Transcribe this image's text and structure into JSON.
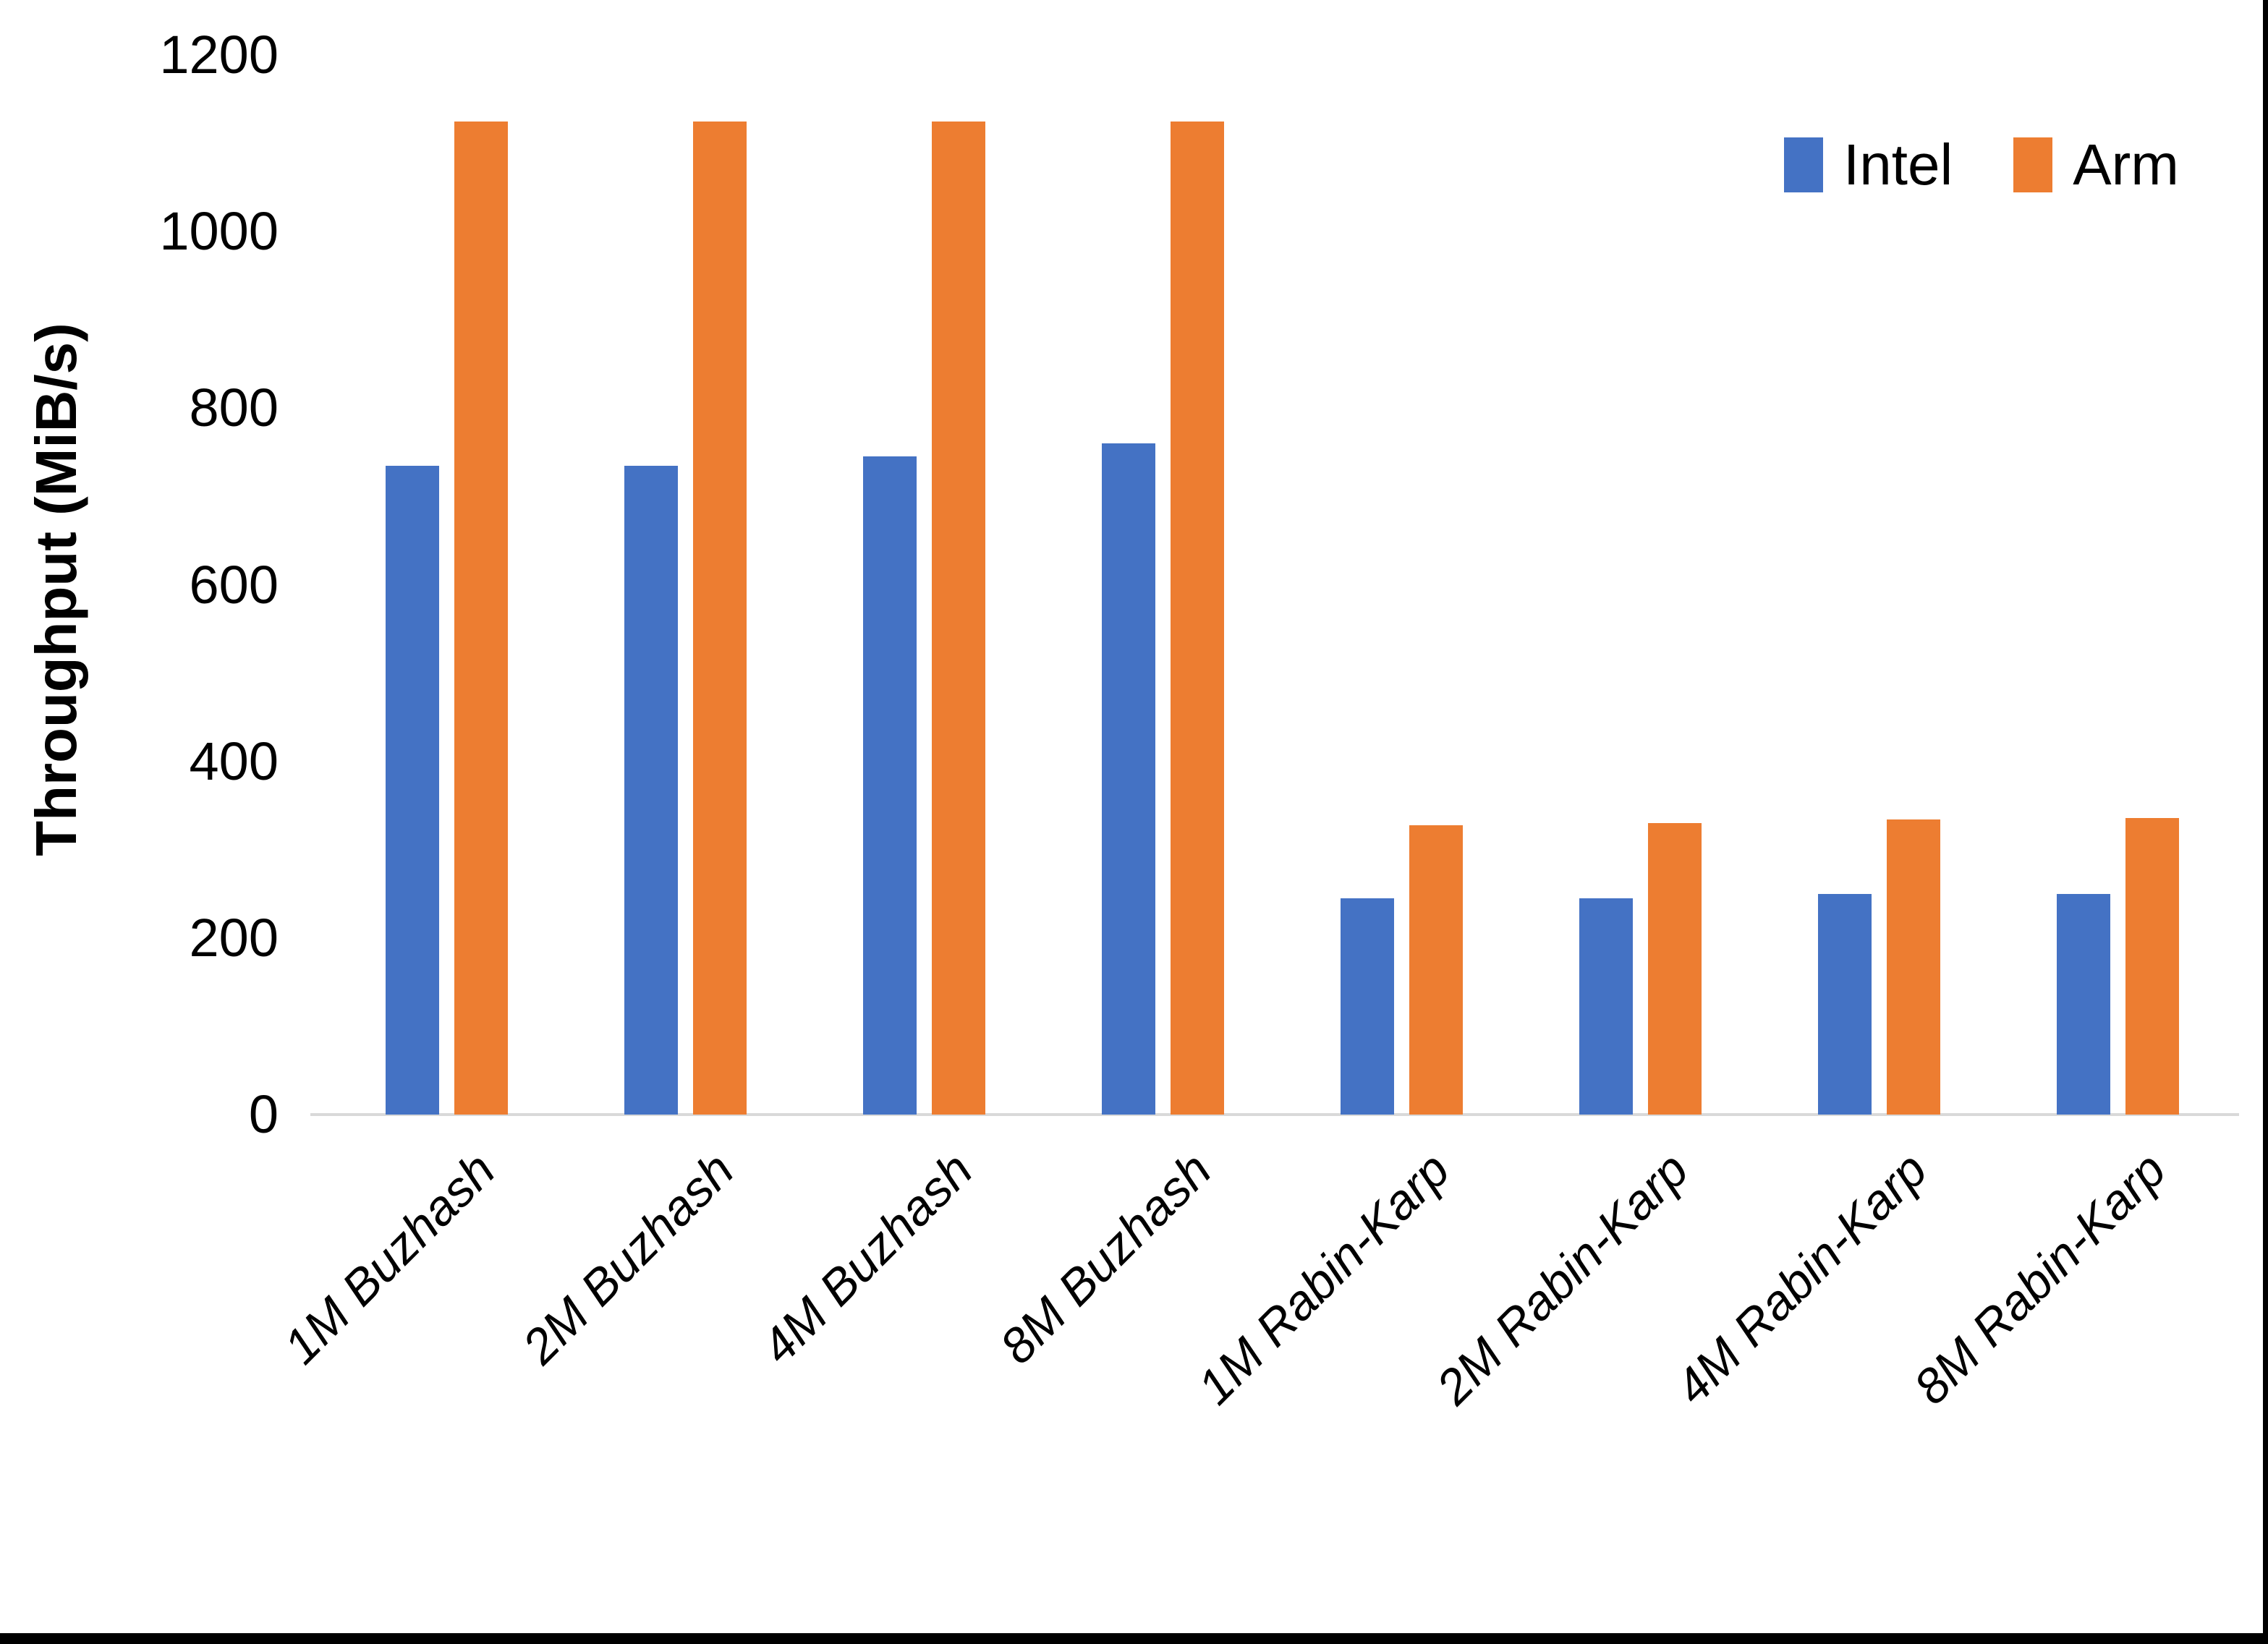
{
  "chart_data": {
    "type": "bar",
    "title": "",
    "ylabel": "Throughput (MiB/s)",
    "xlabel": "",
    "ylim": [
      0,
      1200
    ],
    "yticks": [
      0,
      200,
      400,
      600,
      800,
      1000,
      1200
    ],
    "grid": false,
    "legend_position": "top-right",
    "categories": [
      "1M Buzhash",
      "2M Buzhash",
      "4M Buzhash",
      "8M Buzhash",
      "1M Rabin-Karp",
      "2M Rabin-Karp",
      "4M Rabin-Karp",
      "8M Rabin-Karp"
    ],
    "series": [
      {
        "name": "Intel",
        "color": "#4472C4",
        "values": [
          735,
          735,
          745,
          760,
          245,
          245,
          250,
          250
        ]
      },
      {
        "name": "Arm",
        "color": "#ED7D31",
        "values": [
          1125,
          1125,
          1125,
          1125,
          328,
          330,
          334,
          336
        ]
      }
    ],
    "axis_line_color": "#D9D9D9",
    "text_color": "#000000",
    "background_color": "#FFFFFF",
    "border_color": "#000000"
  }
}
